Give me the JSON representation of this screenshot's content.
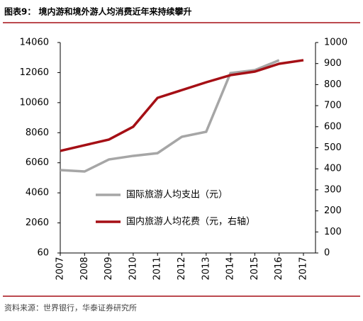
{
  "chart_data": {
    "type": "line",
    "title": "图表9： 境内游和境外游人均消费近年来持续攀升",
    "source": "资料来源：世界银行，华泰证券研究所",
    "categories": [
      "2007",
      "2008",
      "2009",
      "2010",
      "2011",
      "2012",
      "2013",
      "2014",
      "2015",
      "2016",
      "2017"
    ],
    "series": [
      {
        "name": "国际旅游人均支出（元）",
        "color": "#a6a6a6",
        "values": [
          5575,
          5480,
          6280,
          6520,
          6700,
          7790,
          8120,
          12030,
          12220,
          12880,
          null
        ]
      },
      {
        "name": "国内旅游人均花费（元，右轴）",
        "color": "#a50f15",
        "axis": "y2",
        "values": [
          485,
          512,
          539,
          600,
          737,
          774,
          811,
          845,
          862,
          899,
          916
        ]
      }
    ],
    "ylim": [
      60,
      14060
    ],
    "yticks": [
      60,
      2060,
      4060,
      6060,
      8060,
      10060,
      12060,
      14060
    ],
    "y2lim": [
      0,
      1000
    ],
    "y2ticks": [
      0,
      100,
      200,
      300,
      400,
      500,
      600,
      700,
      800,
      900,
      1000
    ]
  }
}
